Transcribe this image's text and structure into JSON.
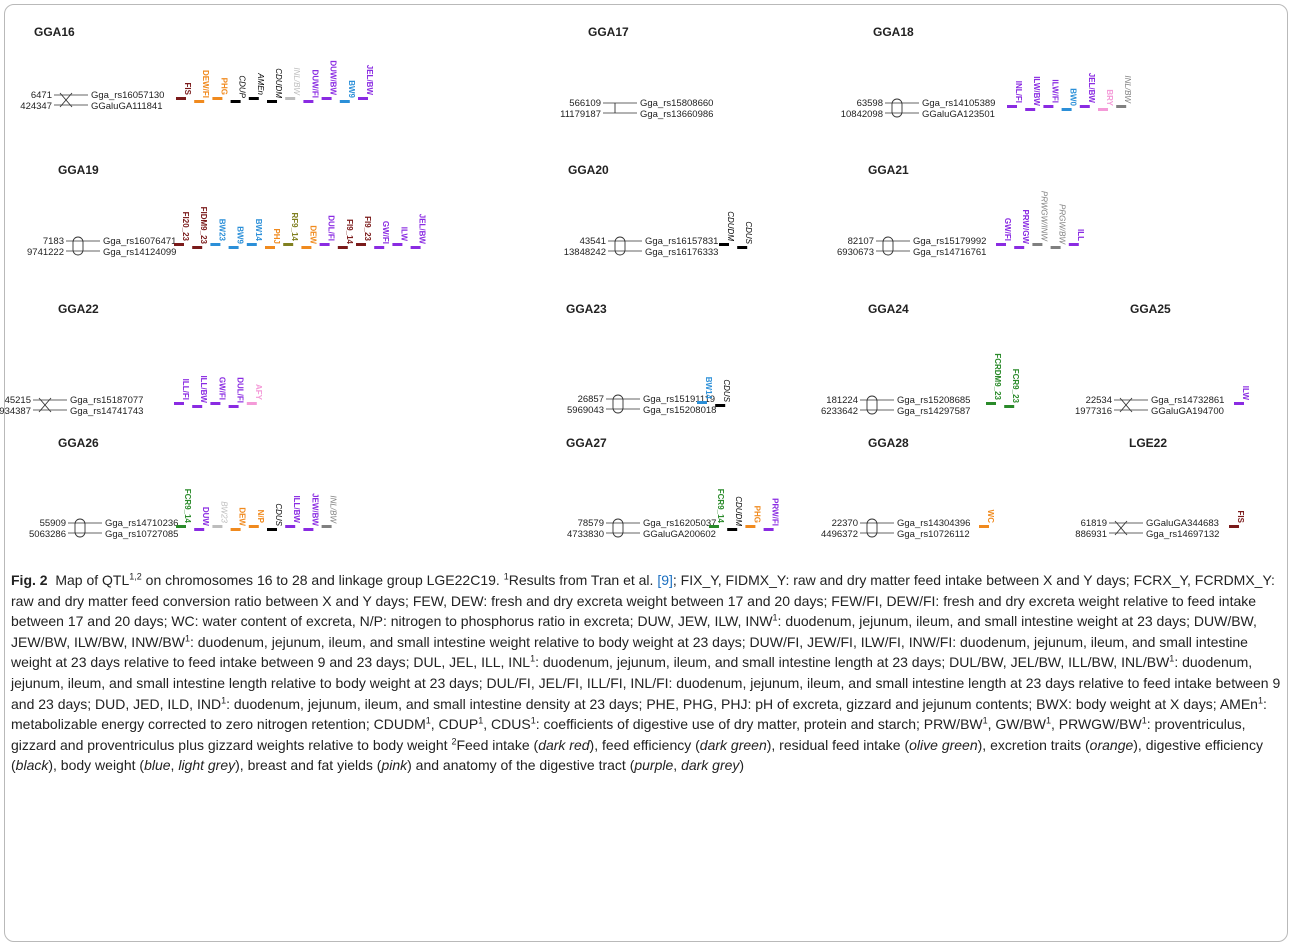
{
  "colors": {
    "feed_intake": "#7a1a1a",
    "feed_efficiency": "#2a8a2a",
    "residual_feed_intake": "#808020",
    "excretion": "#f08a1e",
    "digestive_efficiency": "#000000",
    "body_weight": "#2b8fd8",
    "light_grey": "#bdbdbd",
    "pink": "#f49ad8",
    "purple": "#8a2be2",
    "dark_grey": "#808080"
  },
  "figure": {
    "chromosomes": [
      {
        "name": "GGA16",
        "pos": [
          "6471",
          "424347"
        ],
        "markers": [
          "Gga_rs16057130",
          "GGaluGA111841"
        ],
        "symbol": "cross",
        "qtls": [
          {
            "label": "FIS",
            "c": "feed_intake"
          },
          {
            "label": "DEW/FI",
            "c": "excretion"
          },
          {
            "label": "PHG",
            "c": "excretion"
          },
          {
            "label": "CDUP",
            "c": "digestive_efficiency",
            "it": true
          },
          {
            "label": "AMEn",
            "c": "digestive_efficiency",
            "it": true
          },
          {
            "label": "CDUDM",
            "c": "digestive_efficiency",
            "it": true
          },
          {
            "label": "INL/BW",
            "c": "light_grey",
            "it": true
          },
          {
            "label": "DUW/FI",
            "c": "purple"
          },
          {
            "label": "DUW/BW",
            "c": "purple"
          },
          {
            "label": "BW9",
            "c": "body_weight"
          },
          {
            "label": "JEL/BW",
            "c": "purple"
          }
        ]
      },
      {
        "name": "GGA17",
        "pos": [
          "566109",
          "11179187"
        ],
        "markers": [
          "Gga_rs15808660",
          "Gga_rs13660986"
        ],
        "symbol": "none",
        "qtls": []
      },
      {
        "name": "GGA18",
        "pos": [
          "63598",
          "10842098"
        ],
        "markers": [
          "Gga_rs14105389",
          "GGaluGA123501"
        ],
        "symbol": "oval",
        "qtls": [
          {
            "label": "INL/FI",
            "c": "purple"
          },
          {
            "label": "ILW/BW",
            "c": "purple"
          },
          {
            "label": "ILW/FI",
            "c": "purple"
          },
          {
            "label": "BW0",
            "c": "body_weight"
          },
          {
            "label": "JEL/BW",
            "c": "purple"
          },
          {
            "label": "BRY",
            "c": "pink"
          },
          {
            "label": "INL/BW",
            "c": "dark_grey",
            "it": true
          }
        ]
      },
      {
        "name": "GGA19",
        "pos": [
          "7183",
          "9741222"
        ],
        "markers": [
          "Gga_rs16076471",
          "Gga_rs14124099"
        ],
        "symbol": "oval",
        "qtls": [
          {
            "label": "FI20_23",
            "c": "feed_intake"
          },
          {
            "label": "FIDM9_23",
            "c": "feed_intake"
          },
          {
            "label": "BW23",
            "c": "body_weight"
          },
          {
            "label": "BW9",
            "c": "body_weight"
          },
          {
            "label": "BW14",
            "c": "body_weight"
          },
          {
            "label": "PHJ",
            "c": "excretion"
          },
          {
            "label": "RF9_14",
            "c": "residual_feed_intake"
          },
          {
            "label": "DEW",
            "c": "excretion"
          },
          {
            "label": "DUL/FI",
            "c": "purple"
          },
          {
            "label": "FI9_14",
            "c": "feed_intake"
          },
          {
            "label": "FI9_23",
            "c": "feed_intake"
          },
          {
            "label": "GW/FI",
            "c": "purple"
          },
          {
            "label": "ILW",
            "c": "purple"
          },
          {
            "label": "JEL/BW",
            "c": "purple"
          }
        ]
      },
      {
        "name": "GGA20",
        "pos": [
          "43541",
          "13848242"
        ],
        "markers": [
          "Gga_rs16157831",
          "Gga_rs16176333"
        ],
        "symbol": "oval",
        "qtls": [
          {
            "label": "CDUDM",
            "c": "digestive_efficiency",
            "it": true
          },
          {
            "label": "CDUS",
            "c": "digestive_efficiency",
            "it": true
          }
        ]
      },
      {
        "name": "GGA21",
        "pos": [
          "82107",
          "6930673"
        ],
        "markers": [
          "Gga_rs15179992",
          "Gga_rs14716761"
        ],
        "symbol": "oval",
        "qtls": [
          {
            "label": "GW/FI",
            "c": "purple"
          },
          {
            "label": "PRW/GW",
            "c": "purple"
          },
          {
            "label": "PRWGW/INW",
            "c": "dark_grey",
            "it": true
          },
          {
            "label": "PRGW/BW",
            "c": "dark_grey",
            "it": true
          },
          {
            "label": "ILL",
            "c": "purple"
          }
        ]
      },
      {
        "name": "GGA22",
        "pos": [
          "45215",
          "3934387"
        ],
        "markers": [
          "Gga_rs15187077",
          "Gga_rs14741743"
        ],
        "symbol": "cross",
        "qtls": [
          {
            "label": "ILL/FI",
            "c": "purple"
          },
          {
            "label": "ILL/BW",
            "c": "purple"
          },
          {
            "label": "GW/FI",
            "c": "purple"
          },
          {
            "label": "DUL/FI",
            "c": "purple"
          },
          {
            "label": "AFY",
            "c": "pink"
          }
        ]
      },
      {
        "name": "GGA23",
        "pos": [
          "26857",
          "5969043"
        ],
        "markers": [
          "Gga_rs15191119",
          "Gga_rs15208018"
        ],
        "symbol": "oval",
        "qtls": [
          {
            "label": "BW14",
            "c": "body_weight"
          },
          {
            "label": "CDUS",
            "c": "digestive_efficiency",
            "it": true
          }
        ]
      },
      {
        "name": "GGA24",
        "pos": [
          "181224",
          "6233642"
        ],
        "markers": [
          "Gga_rs15208685",
          "Gga_rs14297587"
        ],
        "symbol": "oval",
        "qtls": [
          {
            "label": "FCRDM9_23",
            "c": "feed_efficiency"
          },
          {
            "label": "FCR9_23",
            "c": "feed_efficiency"
          }
        ]
      },
      {
        "name": "GGA25",
        "pos": [
          "22534",
          "1977316"
        ],
        "markers": [
          "Gga_rs14732861",
          "GGaluGA194700"
        ],
        "symbol": "cross",
        "qtls": [
          {
            "label": "ILW",
            "c": "purple"
          }
        ]
      },
      {
        "name": "GGA26",
        "pos": [
          "55909",
          "5063286"
        ],
        "markers": [
          "Gga_rs14710236",
          "Gga_rs10727085"
        ],
        "symbol": "oval",
        "qtls": [
          {
            "label": "FCR9_14",
            "c": "feed_efficiency"
          },
          {
            "label": "DUW",
            "c": "purple"
          },
          {
            "label": "BW23",
            "c": "light_grey",
            "it": true
          },
          {
            "label": "DEW",
            "c": "excretion"
          },
          {
            "label": "N/P",
            "c": "excretion"
          },
          {
            "label": "CDUS",
            "c": "digestive_efficiency",
            "it": true
          },
          {
            "label": "ILL/BW",
            "c": "purple"
          },
          {
            "label": "JEW/BW",
            "c": "purple"
          },
          {
            "label": "INL/BW",
            "c": "dark_grey",
            "it": true
          }
        ]
      },
      {
        "name": "GGA27",
        "pos": [
          "78579",
          "4733830"
        ],
        "markers": [
          "Gga_rs16205037",
          "GGaluGA200602"
        ],
        "symbol": "oval",
        "qtls": [
          {
            "label": "FCR9_14",
            "c": "feed_efficiency"
          },
          {
            "label": "CDUDM",
            "c": "digestive_efficiency",
            "it": true
          },
          {
            "label": "PHG",
            "c": "excretion"
          },
          {
            "label": "PRW/FI",
            "c": "purple"
          }
        ]
      },
      {
        "name": "GGA28",
        "pos": [
          "22370",
          "4496372"
        ],
        "markers": [
          "Gga_rs14304396",
          "Gga_rs10726112"
        ],
        "symbol": "oval",
        "qtls": [
          {
            "label": "WC",
            "c": "excretion"
          }
        ]
      },
      {
        "name": "LGE22",
        "pos": [
          "61819",
          "886931"
        ],
        "markers": [
          "GGaluGA344683",
          "Gga_rs14697132"
        ],
        "symbol": "cross",
        "qtls": [
          {
            "label": "FIS",
            "c": "feed_intake"
          }
        ]
      }
    ]
  },
  "caption": {
    "fig_label": "Fig. 2",
    "p1": "Map of QTL",
    "p1_sup": "1,2",
    "p2": " on chromosomes 16 to 28 and linkage group LGE22C19. ",
    "p3_sup": "1",
    "p3": "Results from Tran et al. ",
    "ref": "[9]",
    "p4": "; FIX_Y, FIDMX_Y: raw and dry matter feed intake between X and Y days; FCRX_Y, FCRDMX_Y: raw and dry matter feed conversion ratio between X and Y days; FEW, DEW: fresh and dry excreta weight between 17 and 20 days; FEW/FI, DEW/FI: fresh and dry excreta weight relative to feed intake between 17 and 20 days; WC: water content of excreta, N/P: nitrogen to phosphorus ratio in excreta; DUW, JEW, ILW, INW",
    "p5": ": duodenum, jejunum, ileum, and small intestine weight at 23 days; DUW/BW, JEW/BW, ILW/BW, INW/BW",
    "p6": ": duodenum, jejunum, ileum, and small intestine weight relative to body weight at 23 days; DUW/FI, JEW/FI, ILW/FI, INW/FI: duodenum, jejunum, ileum, and small intestine weight at 23 days relative to feed intake between 9 and 23 days; DUL, JEL, ILL, INL",
    "p7": ": duodenum, jejunum, ileum, and small intestine length at 23 days; DUL/BW, JEL/BW, ILL/BW, INL/BW",
    "p8": ": duodenum, jejunum, ileum, and small intestine length relative to body weight at 23 days; DUL/FI, JEL/FI, ILL/FI, INL/FI: duodenum, jejunum, ileum, and small intestine length at 23 days relative to feed intake between 9 and 23 days; DUD, JED, ILD, IND",
    "p9": ": duodenum, jejunum, ileum, and small intestine density at 23 days; PHE, PHG, PHJ: pH of excreta, gizzard and jejunum contents; BWX: body weight at X days; AMEn",
    "p10": ": metabolizable energy corrected to zero nitrogen retention; CDUDM",
    "p11": ", CDUP",
    "p12": ", CDUS",
    "p13": ": coefficients of digestive use of dry matter, protein and starch; PRW/BW",
    "p14": ", GW/BW",
    "p15": ", PRWGW/BW",
    "p16": ": proventriculus, gizzard and proventriculus plus gizzard weights relative to body weight ",
    "p17_sup": "2",
    "p17": "Feed intake (",
    "e_dark_red": "dark red",
    "p18": "), feed efficiency (",
    "e_dark_green": "dark green",
    "p19": "), residual feed intake (",
    "e_olive": "olive green",
    "p20": "), excretion traits (",
    "e_orange": "orange",
    "p21": "), digestive efficiency (",
    "e_black": "black",
    "p22": "), body weight (",
    "e_blue": "blue",
    "p23": ", ",
    "e_light_grey": "light grey",
    "p24": "), breast and fat yields (",
    "e_pink": "pink",
    "p25": ") and anatomy of the digestive tract (",
    "e_purple": "purple",
    "p26": ", ",
    "e_dark_grey": "dark grey",
    "p27": ")"
  }
}
